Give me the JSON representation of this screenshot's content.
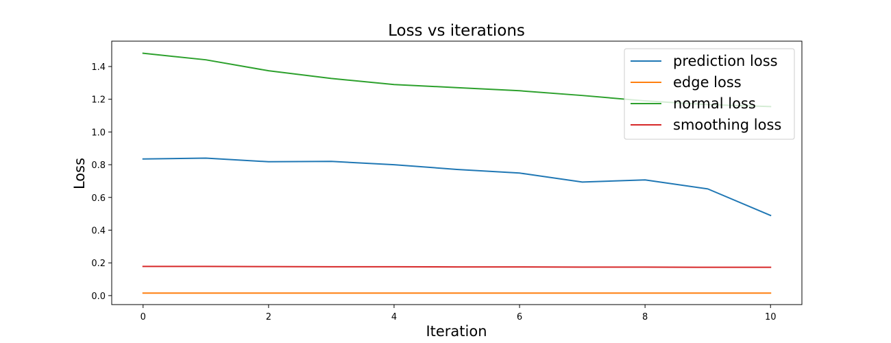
{
  "chart_data": {
    "type": "line",
    "title": "Loss vs iterations",
    "xlabel": "Iteration",
    "ylabel": "Loss",
    "xlim": [
      -0.5,
      10.5
    ],
    "ylim": [
      -0.055,
      1.555
    ],
    "xticks": [
      0,
      2,
      4,
      6,
      8,
      10
    ],
    "yticks": [
      0.0,
      0.2,
      0.4,
      0.6,
      0.8,
      1.0,
      1.2,
      1.4
    ],
    "grid": false,
    "legend_position": "top-right",
    "x": [
      0,
      1,
      2,
      3,
      4,
      5,
      6,
      7,
      8,
      9,
      10
    ],
    "series": [
      {
        "name": "prediction loss",
        "color": "#1f77b4",
        "values": [
          0.835,
          0.84,
          0.818,
          0.82,
          0.8,
          0.771,
          0.749,
          0.694,
          0.707,
          0.652,
          0.49
        ]
      },
      {
        "name": "edge loss",
        "color": "#ff7f0e",
        "values": [
          0.015,
          0.015,
          0.015,
          0.015,
          0.015,
          0.015,
          0.015,
          0.015,
          0.015,
          0.015,
          0.015
        ]
      },
      {
        "name": "normal loss",
        "color": "#2ca02c",
        "values": [
          1.481,
          1.441,
          1.374,
          1.327,
          1.29,
          1.271,
          1.252,
          1.223,
          1.19,
          1.167,
          1.155
        ]
      },
      {
        "name": "smoothing loss",
        "color": "#d62728",
        "values": [
          0.178,
          0.178,
          0.177,
          0.176,
          0.176,
          0.175,
          0.175,
          0.174,
          0.174,
          0.173,
          0.173
        ]
      }
    ]
  }
}
